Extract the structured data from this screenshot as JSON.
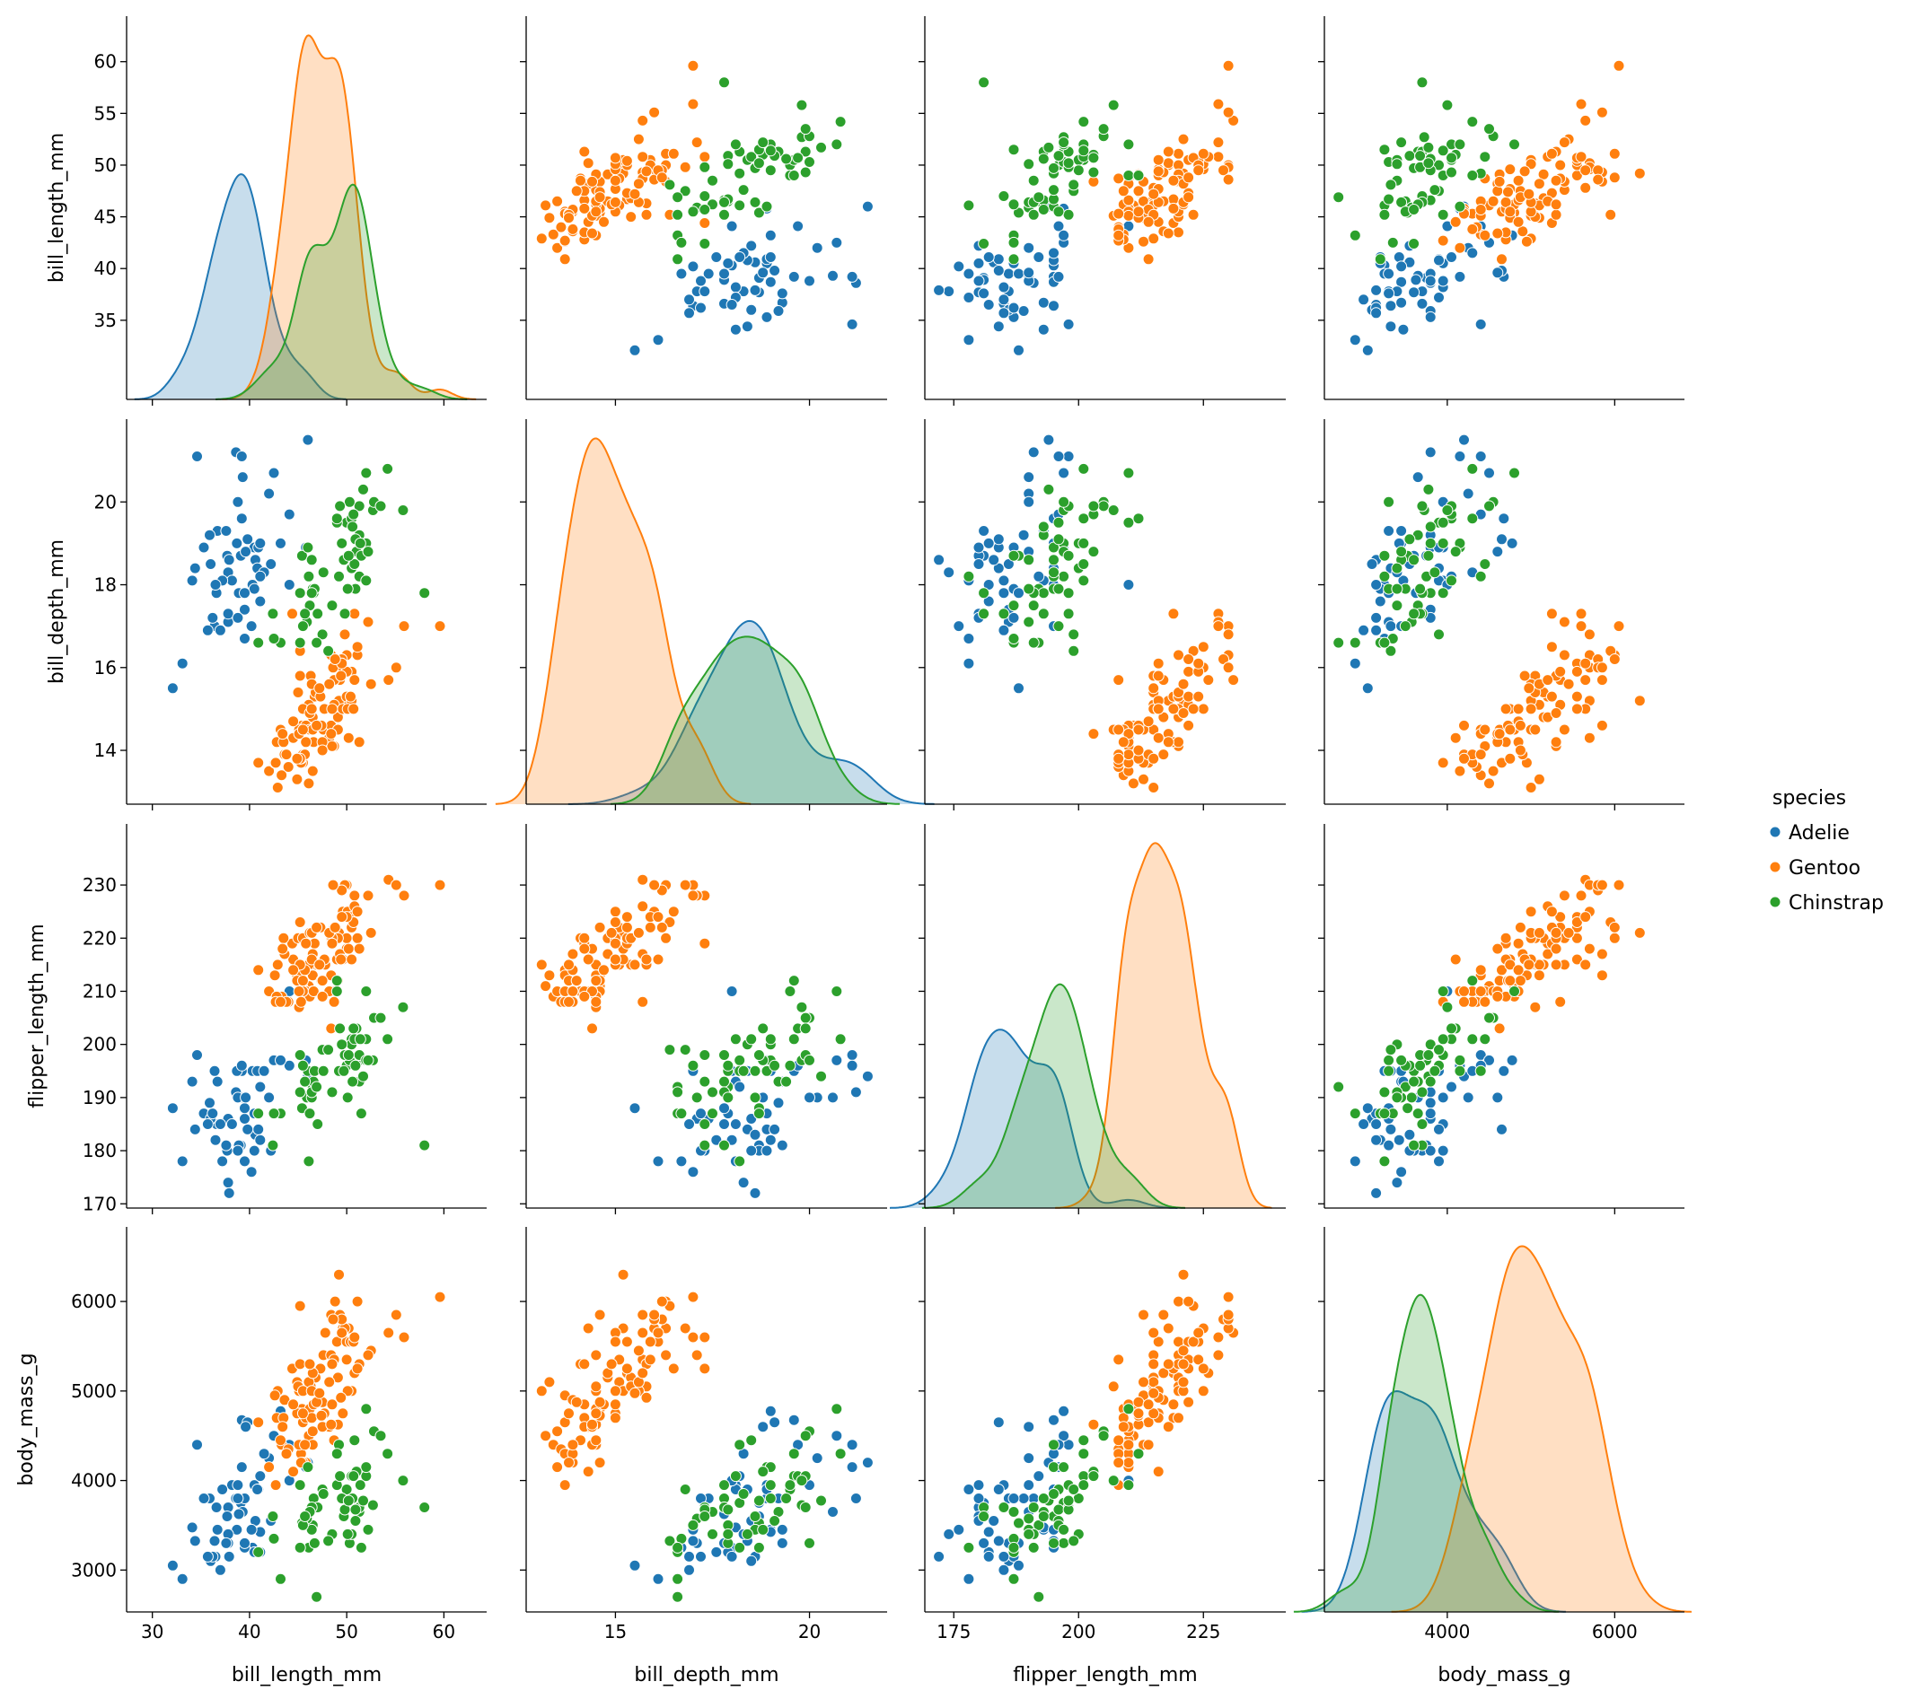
{
  "chart_data": {
    "type": "scatter",
    "title": "",
    "hue": "species",
    "legend": {
      "title": "species",
      "placement": "right",
      "entries": [
        "Adelie",
        "Gentoo",
        "Chinstrap"
      ]
    },
    "colors": {
      "Adelie": "#1f77b4",
      "Gentoo": "#ff7f0e",
      "Chinstrap": "#2ca02c"
    },
    "variables": [
      "bill_length_mm",
      "bill_depth_mm",
      "flipper_length_mm",
      "body_mass_g"
    ],
    "ranges": {
      "bill_length_mm": [
        27.35,
        64.4
      ],
      "bill_depth_mm": [
        12.7,
        22.0
      ],
      "flipper_length_mm": [
        169.2,
        241.5
      ],
      "body_mass_g": [
        2532,
        6833
      ]
    },
    "xticks": {
      "bill_length_mm": [
        30,
        40,
        50,
        60
      ],
      "bill_depth_mm": [
        15,
        20
      ],
      "flipper_length_mm": [
        175,
        200,
        225
      ],
      "body_mass_g": [
        2000,
        4000,
        6000
      ]
    },
    "yticks": {
      "bill_length_mm": [
        35,
        40,
        45,
        50,
        55,
        60
      ],
      "bill_depth_mm": [
        14,
        16,
        18,
        20
      ],
      "flipper_length_mm": [
        170,
        180,
        190,
        200,
        210,
        220,
        230
      ],
      "body_mass_g": [
        3000,
        4000,
        5000,
        6000
      ]
    },
    "diagonal": "kde",
    "data": {
      "Adelie": [
        [
          39.1,
          18.7,
          181,
          3750
        ],
        [
          39.5,
          17.4,
          186,
          3800
        ],
        [
          40.3,
          18.0,
          195,
          3250
        ],
        [
          36.7,
          19.3,
          193,
          3450
        ],
        [
          39.3,
          20.6,
          190,
          3650
        ],
        [
          38.9,
          17.8,
          181,
          3625
        ],
        [
          39.2,
          19.6,
          195,
          4675
        ],
        [
          34.1,
          18.1,
          193,
          3475
        ],
        [
          42.0,
          20.2,
          190,
          4250
        ],
        [
          37.8,
          17.1,
          186,
          3300
        ],
        [
          37.8,
          17.3,
          180,
          3700
        ],
        [
          41.1,
          17.6,
          182,
          3200
        ],
        [
          38.6,
          21.2,
          191,
          3800
        ],
        [
          34.6,
          21.1,
          198,
          4400
        ],
        [
          36.6,
          17.8,
          185,
          3700
        ],
        [
          38.7,
          19.0,
          195,
          3450
        ],
        [
          42.5,
          20.7,
          197,
          4500
        ],
        [
          34.4,
          18.4,
          184,
          3325
        ],
        [
          46.0,
          21.5,
          194,
          4200
        ],
        [
          37.8,
          18.3,
          174,
          3400
        ],
        [
          37.7,
          18.7,
          180,
          3600
        ],
        [
          35.9,
          19.2,
          189,
          3800
        ],
        [
          38.2,
          18.1,
          185,
          3950
        ],
        [
          38.8,
          17.2,
          180,
          3800
        ],
        [
          35.3,
          18.9,
          187,
          3800
        ],
        [
          40.6,
          18.6,
          183,
          3550
        ],
        [
          40.5,
          17.9,
          187,
          3200
        ],
        [
          37.9,
          18.6,
          172,
          3150
        ],
        [
          40.5,
          18.9,
          180,
          3950
        ],
        [
          39.5,
          16.7,
          178,
          3250
        ],
        [
          37.2,
          18.1,
          178,
          3900
        ],
        [
          39.5,
          17.8,
          188,
          3300
        ],
        [
          40.9,
          18.9,
          184,
          3900
        ],
        [
          36.4,
          17.0,
          195,
          3325
        ],
        [
          39.2,
          21.1,
          196,
          4150
        ],
        [
          38.8,
          20.0,
          190,
          3950
        ],
        [
          42.2,
          18.5,
          180,
          3550
        ],
        [
          37.6,
          19.3,
          181,
          3300
        ],
        [
          39.8,
          19.1,
          184,
          4650
        ],
        [
          36.5,
          18.0,
          182,
          3150
        ],
        [
          40.8,
          18.4,
          195,
          3900
        ],
        [
          36.0,
          18.5,
          186,
          3100
        ],
        [
          44.1,
          19.7,
          196,
          4400
        ],
        [
          37.0,
          16.9,
          185,
          3000
        ],
        [
          39.6,
          18.8,
          190,
          4600
        ],
        [
          41.1,
          19.0,
          182,
          3425
        ],
        [
          36.2,
          17.2,
          187,
          3150
        ],
        [
          32.1,
          15.5,
          188,
          3050
        ],
        [
          33.1,
          16.1,
          178,
          2900
        ],
        [
          45.8,
          18.9,
          197,
          4150
        ],
        [
          40.2,
          17.0,
          176,
          3450
        ],
        [
          35.7,
          16.9,
          185,
          3150
        ],
        [
          41.5,
          18.3,
          195,
          4300
        ],
        [
          44.1,
          18.0,
          210,
          4000
        ],
        [
          41.1,
          18.2,
          192,
          4050
        ],
        [
          43.2,
          19.0,
          197,
          4775
        ]
      ],
      "Gentoo": [
        [
          46.1,
          13.2,
          211,
          4500
        ],
        [
          50.0,
          16.3,
          230,
          5700
        ],
        [
          48.7,
          14.1,
          210,
          4450
        ],
        [
          50.0,
          15.2,
          218,
          5700
        ],
        [
          47.6,
          14.5,
          215,
          5400
        ],
        [
          46.5,
          13.5,
          210,
          4550
        ],
        [
          45.4,
          14.6,
          211,
          4800
        ],
        [
          46.7,
          15.3,
          219,
          5200
        ],
        [
          43.3,
          13.4,
          209,
          4400
        ],
        [
          46.8,
          15.4,
          215,
          5150
        ],
        [
          40.9,
          13.7,
          214,
          4650
        ],
        [
          49.0,
          16.1,
          216,
          5550
        ],
        [
          45.5,
          13.7,
          214,
          4650
        ],
        [
          48.4,
          14.6,
          213,
          5850
        ],
        [
          45.8,
          14.6,
          210,
          4200
        ],
        [
          49.3,
          15.7,
          217,
          5850
        ],
        [
          42.0,
          13.5,
          210,
          4150
        ],
        [
          49.2,
          15.2,
          221,
          6300
        ],
        [
          46.2,
          14.5,
          209,
          4800
        ],
        [
          48.7,
          15.1,
          222,
          5350
        ],
        [
          50.2,
          14.3,
          218,
          5700
        ],
        [
          45.1,
          14.5,
          215,
          5000
        ],
        [
          46.5,
          14.5,
          213,
          4400
        ],
        [
          46.3,
          15.8,
          215,
          5050
        ],
        [
          42.9,
          13.1,
          215,
          5000
        ],
        [
          46.1,
          15.1,
          215,
          5100
        ],
        [
          44.5,
          14.3,
          216,
          4100
        ],
        [
          47.8,
          15.0,
          215,
          5650
        ],
        [
          48.2,
          14.3,
          210,
          4600
        ],
        [
          50.0,
          15.3,
          220,
          5550
        ],
        [
          47.3,
          15.3,
          222,
          5250
        ],
        [
          42.8,
          14.2,
          209,
          4700
        ],
        [
          45.1,
          14.5,
          207,
          5050
        ],
        [
          59.6,
          17.0,
          230,
          6050
        ],
        [
          49.1,
          14.8,
          220,
          5150
        ],
        [
          48.4,
          16.3,
          220,
          5400
        ],
        [
          42.6,
          13.7,
          213,
          4950
        ],
        [
          44.4,
          17.3,
          219,
          5250
        ],
        [
          44.0,
          13.6,
          208,
          4350
        ],
        [
          48.7,
          15.7,
          208,
          5350
        ],
        [
          42.7,
          13.7,
          208,
          3950
        ],
        [
          49.6,
          16.0,
          225,
          5700
        ],
        [
          45.3,
          13.7,
          210,
          4300
        ],
        [
          49.6,
          15.0,
          216,
          4750
        ],
        [
          50.5,
          15.9,
          222,
          5550
        ],
        [
          43.6,
          13.9,
          217,
          4900
        ],
        [
          45.5,
          13.9,
          210,
          4200
        ],
        [
          50.5,
          15.2,
          216,
          5000
        ],
        [
          44.9,
          13.3,
          213,
          5100
        ],
        [
          45.2,
          15.8,
          215,
          5300
        ],
        [
          46.6,
          14.2,
          210,
          4850
        ],
        [
          48.5,
          14.1,
          220,
          5300
        ],
        [
          45.1,
          14.4,
          210,
          4400
        ],
        [
          50.1,
          15.0,
          225,
          5000
        ],
        [
          46.5,
          14.8,
          217,
          5200
        ],
        [
          45.0,
          15.4,
          220,
          5050
        ],
        [
          43.8,
          13.9,
          208,
          4300
        ],
        [
          45.5,
          15.0,
          220,
          5000
        ],
        [
          43.2,
          14.5,
          208,
          4450
        ],
        [
          50.4,
          15.3,
          224,
          5550
        ],
        [
          45.3,
          13.8,
          208,
          4200
        ],
        [
          46.2,
          14.9,
          221,
          5300
        ],
        [
          45.7,
          13.9,
          214,
          4400
        ],
        [
          54.3,
          15.7,
          231,
          5650
        ],
        [
          45.8,
          14.2,
          219,
          4700
        ],
        [
          49.8,
          16.8,
          230,
          5700
        ],
        [
          49.5,
          16.2,
          229,
          5800
        ],
        [
          43.5,
          14.2,
          220,
          4700
        ],
        [
          50.7,
          15.0,
          223,
          5550
        ],
        [
          47.7,
          15.0,
          216,
          4750
        ],
        [
          46.4,
          15.6,
          221,
          5000
        ],
        [
          48.2,
          15.6,
          221,
          5100
        ],
        [
          46.4,
          15.0,
          216,
          4700
        ],
        [
          48.6,
          16.0,
          230,
          5800
        ],
        [
          47.5,
          14.2,
          209,
          4600
        ],
        [
          51.1,
          16.3,
          220,
          6000
        ],
        [
          45.2,
          13.8,
          215,
          4750
        ],
        [
          45.2,
          16.4,
          223,
          5950
        ],
        [
          49.1,
          14.5,
          212,
          4625
        ],
        [
          52.5,
          15.6,
          221,
          5450
        ],
        [
          47.4,
          14.6,
          212,
          4725
        ],
        [
          50.0,
          15.9,
          224,
          5350
        ],
        [
          44.9,
          13.8,
          212,
          4750
        ],
        [
          50.8,
          17.3,
          228,
          5600
        ],
        [
          43.4,
          14.4,
          218,
          4600
        ],
        [
          51.3,
          14.2,
          218,
          5300
        ],
        [
          47.5,
          14.0,
          212,
          4875
        ],
        [
          52.2,
          17.1,
          228,
          5400
        ],
        [
          45.5,
          14.5,
          212,
          4750
        ],
        [
          49.5,
          16.1,
          224,
          5650
        ],
        [
          44.5,
          14.7,
          214,
          4850
        ],
        [
          50.8,
          15.7,
          226,
          5200
        ],
        [
          49.4,
          15.8,
          216,
          4925
        ],
        [
          46.9,
          14.6,
          222,
          4875
        ],
        [
          48.4,
          14.4,
          203,
          4625
        ],
        [
          51.1,
          16.5,
          225,
          5250
        ],
        [
          48.5,
          15.0,
          219,
          4850
        ],
        [
          55.9,
          17.0,
          228,
          5600
        ],
        [
          47.2,
          15.5,
          215,
          4975
        ],
        [
          55.1,
          16.0,
          230,
          5850
        ],
        [
          48.8,
          16.2,
          222,
          6000
        ]
      ],
      "Chinstrap": [
        [
          46.5,
          17.9,
          192,
          3500
        ],
        [
          50.0,
          19.5,
          196,
          3900
        ],
        [
          51.3,
          19.2,
          193,
          3650
        ],
        [
          45.4,
          18.7,
          188,
          3525
        ],
        [
          52.7,
          19.8,
          197,
          3725
        ],
        [
          45.2,
          17.8,
          198,
          3950
        ],
        [
          46.1,
          18.2,
          178,
          3250
        ],
        [
          51.3,
          18.2,
          197,
          3750
        ],
        [
          46.0,
          18.9,
          195,
          4150
        ],
        [
          51.3,
          19.9,
          198,
          3700
        ],
        [
          46.6,
          17.8,
          193,
          3800
        ],
        [
          51.7,
          20.3,
          194,
          3775
        ],
        [
          47.0,
          17.3,
          185,
          3700
        ],
        [
          52.0,
          18.1,
          201,
          4050
        ],
        [
          45.9,
          17.1,
          190,
          3575
        ],
        [
          50.5,
          19.6,
          201,
          4050
        ],
        [
          50.3,
          20.0,
          197,
          3300
        ],
        [
          58.0,
          17.8,
          181,
          3700
        ],
        [
          46.4,
          18.6,
          190,
          3450
        ],
        [
          49.2,
          18.2,
          195,
          4400
        ],
        [
          42.4,
          17.3,
          181,
          3600
        ],
        [
          48.5,
          17.5,
          191,
          3400
        ],
        [
          43.2,
          16.6,
          187,
          2900
        ],
        [
          50.6,
          19.4,
          193,
          3800
        ],
        [
          46.7,
          17.9,
          195,
          3300
        ],
        [
          52.0,
          19.0,
          197,
          4150
        ],
        [
          50.5,
          18.4,
          200,
          3400
        ],
        [
          49.5,
          19.0,
          200,
          3800
        ],
        [
          46.4,
          17.8,
          191,
          3700
        ],
        [
          52.8,
          20.0,
          205,
          4550
        ],
        [
          40.9,
          16.6,
          187,
          3200
        ],
        [
          54.2,
          20.8,
          201,
          4300
        ],
        [
          42.5,
          16.7,
          187,
          3350
        ],
        [
          51.0,
          18.8,
          203,
          4100
        ],
        [
          49.7,
          18.6,
          195,
          3600
        ],
        [
          47.5,
          16.8,
          199,
          3900
        ],
        [
          47.6,
          18.3,
          195,
          3850
        ],
        [
          52.0,
          20.7,
          210,
          4800
        ],
        [
          46.9,
          16.6,
          192,
          2700
        ],
        [
          53.5,
          19.9,
          205,
          4500
        ],
        [
          49.0,
          19.5,
          210,
          3950
        ],
        [
          46.2,
          17.5,
          187,
          3650
        ],
        [
          50.9,
          19.1,
          196,
          3550
        ],
        [
          45.5,
          17.0,
          196,
          3500
        ],
        [
          50.9,
          17.9,
          196,
          3675
        ],
        [
          50.8,
          18.5,
          201,
          4450
        ],
        [
          50.1,
          17.9,
          190,
          3400
        ],
        [
          49.0,
          19.6,
          212,
          4300
        ],
        [
          51.5,
          18.7,
          187,
          3250
        ],
        [
          49.8,
          17.3,
          198,
          3675
        ],
        [
          48.1,
          16.4,
          199,
          3325
        ],
        [
          51.4,
          19.0,
          201,
          3950
        ],
        [
          45.7,
          17.3,
          193,
          3600
        ],
        [
          50.7,
          19.7,
          203,
          4050
        ],
        [
          52.2,
          18.8,
          197,
          3450
        ],
        [
          45.2,
          16.6,
          191,
          3250
        ],
        [
          49.3,
          19.9,
          203,
          4050
        ],
        [
          50.2,
          18.7,
          198,
          3775
        ],
        [
          55.8,
          19.8,
          207,
          4000
        ]
      ]
    }
  }
}
